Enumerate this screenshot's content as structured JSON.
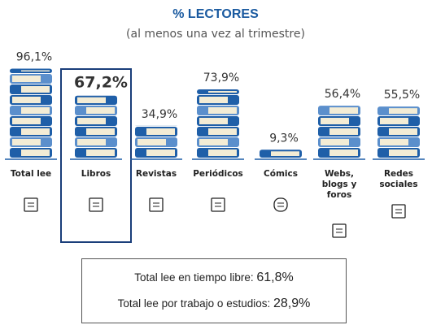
{
  "chart_data": {
    "type": "bar",
    "title": "% LECTORES",
    "subtitle": "(al menos una vez al trimestre)",
    "categories": [
      "Total lee",
      "Libros",
      "Revistas",
      "Periódicos",
      "Cómics",
      "Webs, blogs y foros",
      "Redes sociales"
    ],
    "values": [
      96.1,
      67.2,
      34.9,
      73.9,
      9.3,
      56.4,
      55.5
    ],
    "value_labels": [
      "96,1%",
      "67,2%",
      "34,9%",
      "73,9%",
      "9,3%",
      "56,4%",
      "55,5%"
    ],
    "highlighted": [
      false,
      true,
      false,
      false,
      false,
      false,
      false
    ],
    "color": "#1f5fa8",
    "notes": [
      {
        "label": "Total lee en tiempo libre:",
        "value": "61,8%"
      },
      {
        "label": "Total lee por trabajo o estudios:",
        "value": "28,9%"
      }
    ]
  }
}
